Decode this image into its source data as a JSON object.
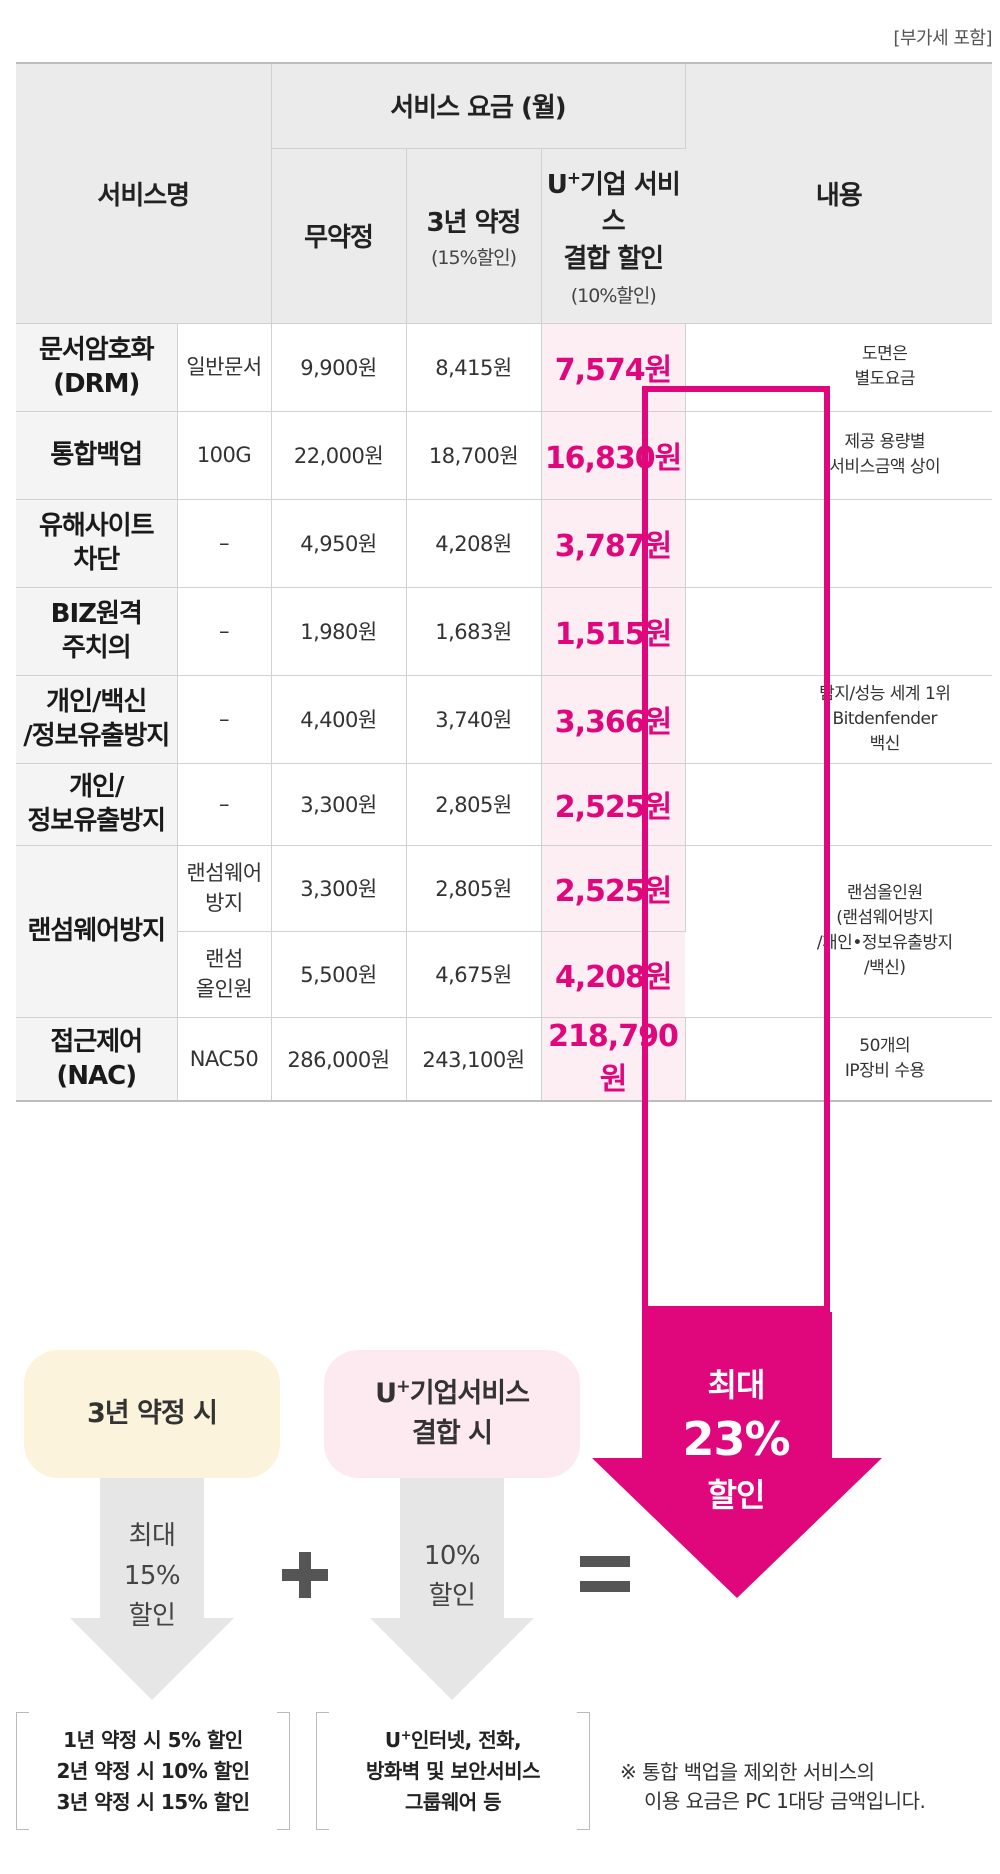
{
  "vat_note": "[부가세 포함]",
  "header": {
    "service_name": "서비스명",
    "fee_group": "서비스 요금 (월)",
    "no_contract": "무약정",
    "three_year": "3년 약정",
    "three_year_sub": "(15%할인)",
    "combo_prefix": "U",
    "combo_sup": "+",
    "combo_line1_rest": "기업 서비스",
    "combo_line2": "결합 할인",
    "combo_sub": "(10%할인)",
    "content": "내용"
  },
  "rows": [
    {
      "name_1": "문서암호화",
      "name_2": "(DRM)",
      "sub_1": "일반문서",
      "sub_2": "",
      "no_contract": "9,900원",
      "three_year": "8,415원",
      "combo": "7,574원",
      "desc_1": "도면은",
      "desc_2": "별도요금",
      "desc_3": "",
      "desc_4": ""
    },
    {
      "name_1": "통합백업",
      "name_2": "",
      "sub_1": "100G",
      "sub_2": "",
      "no_contract": "22,000원",
      "three_year": "18,700원",
      "combo": "16,830원",
      "desc_1": "제공 용량별",
      "desc_2": "서비스금액 상이",
      "desc_3": "",
      "desc_4": ""
    },
    {
      "name_1": "유해사이트",
      "name_2": "차단",
      "sub_1": "–",
      "sub_2": "",
      "no_contract": "4,950원",
      "three_year": "4,208원",
      "combo": "3,787원",
      "desc_1": "",
      "desc_2": "",
      "desc_3": "",
      "desc_4": ""
    },
    {
      "name_1": "BIZ원격",
      "name_2": "주치의",
      "sub_1": "–",
      "sub_2": "",
      "no_contract": "1,980원",
      "three_year": "1,683원",
      "combo": "1,515원",
      "desc_1": "",
      "desc_2": "",
      "desc_3": "",
      "desc_4": ""
    },
    {
      "name_1": "개인/백신",
      "name_2": "/정보유출방지",
      "sub_1": "–",
      "sub_2": "",
      "no_contract": "4,400원",
      "three_year": "3,740원",
      "combo": "3,366원",
      "desc_1": "탐지/성능 세계 1위",
      "desc_2": "Bitdenfender",
      "desc_3": "백신",
      "desc_4": ""
    },
    {
      "name_1": "개인/",
      "name_2": "정보유출방지",
      "sub_1": "–",
      "sub_2": "",
      "no_contract": "3,300원",
      "three_year": "2,805원",
      "combo": "2,525원",
      "desc_1": "",
      "desc_2": "",
      "desc_3": "",
      "desc_4": ""
    },
    {
      "name_1": "랜섬웨어방지",
      "name_2": "",
      "sub_1": "랜섬웨어",
      "sub_2": "방지",
      "no_contract": "3,300원",
      "three_year": "2,805원",
      "combo": "2,525원",
      "desc_1": "랜섬올인원",
      "desc_2": "(랜섬웨어방지",
      "desc_3": "/개인•정보유출방지",
      "desc_4": "/백신)"
    },
    {
      "name_1": "",
      "name_2": "",
      "sub_1": "랜섬",
      "sub_2": "올인원",
      "no_contract": "5,500원",
      "three_year": "4,675원",
      "combo": "4,208원",
      "desc_1": "",
      "desc_2": "",
      "desc_3": "",
      "desc_4": ""
    },
    {
      "name_1": "접근제어",
      "name_2": "(NAC)",
      "sub_1": "NAC50",
      "sub_2": "",
      "no_contract": "286,000원",
      "three_year": "243,100원",
      "combo": "218,790원",
      "desc_1": "50개의",
      "desc_2": "IP장비 수용",
      "desc_3": "",
      "desc_4": ""
    }
  ],
  "max_discount": {
    "line1": "최대",
    "line2": "23%",
    "line3": "할인"
  },
  "yearly": {
    "pill": "3년 약정 시",
    "arrow_1": "최대",
    "arrow_2": "15%",
    "arrow_3": "할인",
    "detail_1": "1년 약정 시 5% 할인",
    "detail_2": "2년 약정 시 10% 할인",
    "detail_3": "3년 약정 시 15% 할인"
  },
  "combo": {
    "pill_prefix": "U",
    "pill_sup": "+",
    "pill_rest": "기업서비스",
    "pill_line2": "결합 시",
    "arrow_1": "10%",
    "arrow_2": "할인",
    "detail_prefix": "U",
    "detail_sup": "+",
    "detail_rest": "인터넷, 전화,",
    "detail_2": "방화벽 및 보안서비스",
    "detail_3": "그룹웨어 등"
  },
  "footnote": {
    "line1": "※ 통합 백업을 제외한 서비스의",
    "line2": "이용 요금은 PC 1대당 금액입니다."
  },
  "colors": {
    "accent_magenta": "#e0077d",
    "highlight_bg": "#fdeef3",
    "header_bg": "#ebebeb",
    "yearly_pill_bg": "#fcf3dc",
    "combo_pill_bg": "#fdeaf0",
    "arrow_gray": "#e6e6e6",
    "symbol_gray": "#555555"
  }
}
